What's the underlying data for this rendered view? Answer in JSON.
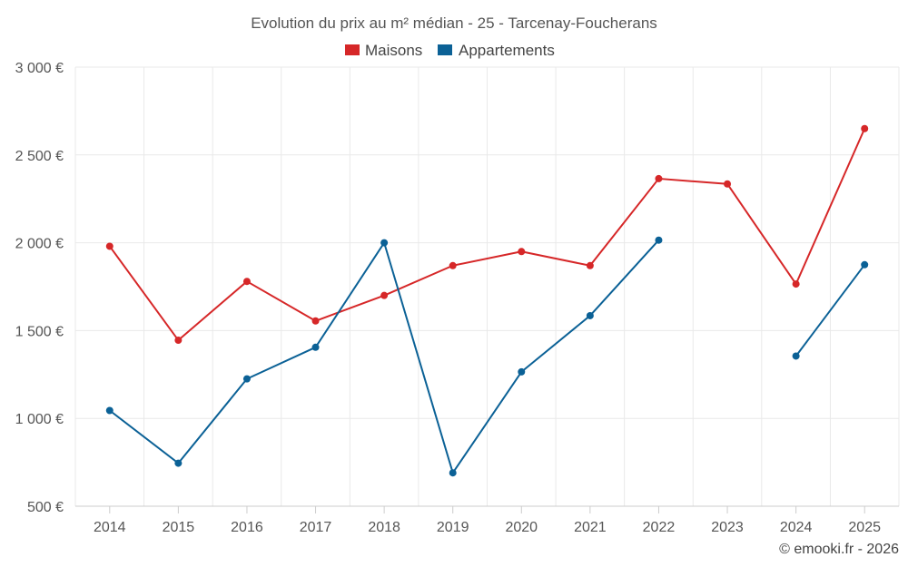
{
  "chart_data": {
    "type": "line",
    "title": "Evolution du prix au m² médian - 25 - Tarcenay-Foucherans",
    "categories": [
      "2014",
      "2015",
      "2016",
      "2017",
      "2018",
      "2019",
      "2020",
      "2021",
      "2022",
      "2023",
      "2024",
      "2025"
    ],
    "y_ticks": [
      "500 €",
      "1 000 €",
      "1 500 €",
      "2 000 €",
      "2 500 €",
      "3 000 €"
    ],
    "y_tick_values": [
      500,
      1000,
      1500,
      2000,
      2500,
      3000
    ],
    "ylim": [
      500,
      3000
    ],
    "grid": true,
    "legend_position": "top-center",
    "series": [
      {
        "name": "Maisons",
        "color": "#d62728",
        "values": [
          1980,
          1445,
          1780,
          1555,
          1700,
          1870,
          1950,
          1870,
          2365,
          2335,
          1765,
          2650
        ]
      },
      {
        "name": "Appartements",
        "color": "#0b6196",
        "values": [
          1045,
          745,
          1225,
          1405,
          2000,
          690,
          1265,
          1585,
          2015,
          null,
          1355,
          1875
        ]
      }
    ]
  },
  "credit": "© emooki.fr - 2026"
}
